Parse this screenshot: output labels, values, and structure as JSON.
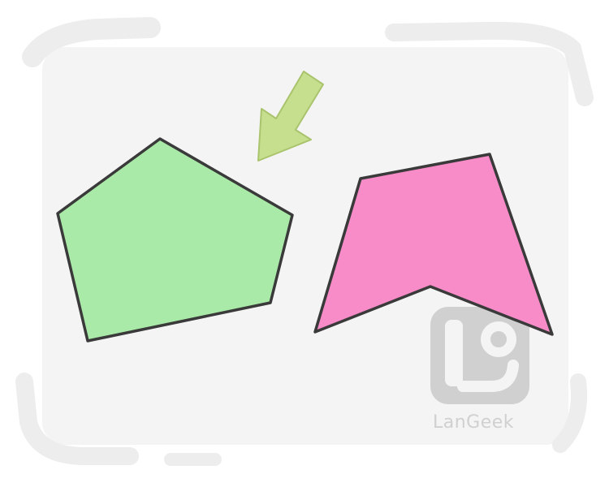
{
  "colors": {
    "background": "#ffffff",
    "panel": "#f4f4f4",
    "frame_stroke": "#ededed",
    "outline": "#3a3a3a",
    "convex_fill": "#aaeaa8",
    "concave_fill": "#f78cc8",
    "arrow_fill": "#c6df8f",
    "arrow_stroke": "#a9c46c",
    "watermark": "#d0d0d0"
  },
  "icons": {
    "pointer": "arrow-pointing-down-left-icon",
    "watermark_logo": "langeek-logo-icon"
  },
  "shapes": {
    "convex": "convex-pentagon",
    "concave": "concave-polygon"
  },
  "watermark": {
    "text": "LanGeek"
  }
}
